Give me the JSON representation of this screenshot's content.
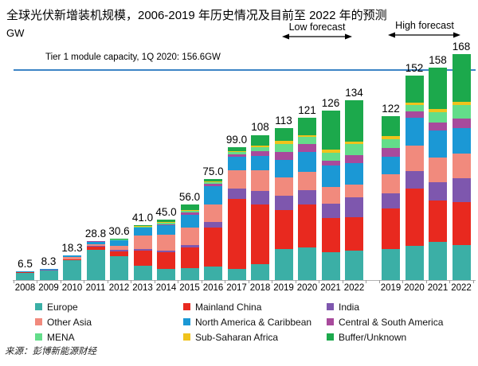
{
  "title": "全球光伏新增装机规模，2006-2019 年历史情况及目前至 2022 年的预测",
  "ylabel": "GW",
  "annotations": {
    "low_forecast": "Low forecast",
    "high_forecast": "High forecast",
    "tier1": "Tier 1 module capacity, 1Q 2020: 156.6GW"
  },
  "source": "来源：彭博新能源财经",
  "chart_data": {
    "type": "bar",
    "stacked": true,
    "unit": "GW",
    "ylim": [
      0,
      170
    ],
    "grid": false,
    "legend_position": "bottom",
    "reference_line": {
      "label": "Tier 1 module capacity, 1Q 2020: 156.6GW",
      "value": 156.6,
      "color": "#3d85c6"
    },
    "groups": [
      {
        "name": "history-low-forecast",
        "years": [
          "2008",
          "2009",
          "2010",
          "2011",
          "2012",
          "2013",
          "2014",
          "2015",
          "2016",
          "2017",
          "2018",
          "2019",
          "2020",
          "2021",
          "2022"
        ],
        "labels": [
          "6.5",
          "8.3",
          "18.3",
          "28.8",
          "30.6",
          "41.0",
          "45.0",
          "56.0",
          "75.0",
          "99.0",
          "108",
          "113",
          "121",
          "126",
          "134"
        ],
        "totals": [
          6.5,
          8.3,
          18.3,
          28.8,
          30.6,
          41.0,
          45.0,
          56.0,
          75.0,
          99.0,
          108,
          113,
          121,
          126,
          134
        ]
      },
      {
        "name": "high-forecast",
        "years": [
          "2019",
          "2020",
          "2021",
          "2022"
        ],
        "labels": [
          "122",
          "152",
          "158",
          "168"
        ],
        "totals": [
          122,
          152,
          158,
          168
        ]
      }
    ],
    "series": [
      {
        "name": "Europe",
        "color": "#3bafa6",
        "group1": [
          5.6,
          7.2,
          15.0,
          22.5,
          17.5,
          10.5,
          8.0,
          8.6,
          10.0,
          8.5,
          12.0,
          23.0,
          24.5,
          21.0,
          22.0
        ],
        "group2": [
          23.0,
          25.5,
          28.5,
          26.0
        ]
      },
      {
        "name": "Mainland China",
        "color": "#e8291f",
        "group1": [
          0.1,
          0.2,
          0.6,
          2.5,
          4.0,
          11.5,
          13.0,
          15.5,
          29.0,
          52.0,
          44.0,
          29.0,
          32.0,
          25.0,
          25.0
        ],
        "group2": [
          30.0,
          42.5,
          30.5,
          32.0
        ]
      },
      {
        "name": "India",
        "color": "#7e57ae",
        "group1": [
          0.05,
          0.05,
          0.1,
          0.3,
          1.0,
          1.1,
          0.9,
          2.1,
          4.5,
          7.5,
          10.5,
          11.0,
          10.5,
          11.0,
          14.5
        ],
        "group2": [
          11.5,
          13.0,
          14.0,
          18.0
        ]
      },
      {
        "name": "Other Asia",
        "color": "#f18a7d",
        "group1": [
          0.4,
          0.5,
          1.2,
          1.5,
          3.0,
          10.0,
          12.0,
          13.0,
          12.5,
          13.5,
          15.0,
          13.5,
          13.5,
          12.0,
          9.5
        ],
        "group2": [
          14.0,
          19.0,
          18.0,
          18.0
        ]
      },
      {
        "name": "North America & Caribbean",
        "color": "#1b98d5",
        "group1": [
          0.3,
          0.35,
          1.2,
          1.9,
          4.0,
          5.8,
          7.0,
          9.5,
          14.0,
          10.0,
          11.0,
          13.0,
          15.0,
          16.0,
          16.0
        ],
        "group2": [
          13.5,
          21.0,
          20.0,
          19.0
        ]
      },
      {
        "name": "Central & South America",
        "color": "#a84a9c",
        "group1": [
          0.05,
          0,
          0.1,
          0.05,
          0.3,
          0.4,
          0.7,
          1.6,
          1.8,
          2.2,
          3.5,
          6.0,
          6.0,
          4.0,
          6.0
        ],
        "group2": [
          6.5,
          4.5,
          6.0,
          7.0
        ]
      },
      {
        "name": "MENA",
        "color": "#63dd8a",
        "group1": [
          0,
          0,
          0.1,
          0.05,
          0.4,
          0.6,
          1.2,
          1.2,
          1.2,
          1.8,
          3.0,
          6.0,
          5.0,
          6.0,
          8.0
        ],
        "group2": [
          6.0,
          4.5,
          8.0,
          10.0
        ]
      },
      {
        "name": "Sub-Saharan Africa",
        "color": "#f0c31c",
        "group1": [
          0,
          0,
          0,
          0,
          0.2,
          0.3,
          0.4,
          0.7,
          0.6,
          0.5,
          1.0,
          2.0,
          1.5,
          2.0,
          2.0
        ],
        "group2": [
          2.5,
          2.0,
          2.0,
          2.5
        ]
      },
      {
        "name": "Buffer/Unknown",
        "color": "#1ca94c",
        "group1": [
          0,
          0,
          0,
          0,
          0.2,
          0.8,
          1.8,
          3.8,
          1.4,
          3.0,
          8.0,
          9.5,
          13.0,
          29.0,
          31.0
        ],
        "group2": [
          15.0,
          20.0,
          31.0,
          35.5
        ]
      }
    ]
  }
}
